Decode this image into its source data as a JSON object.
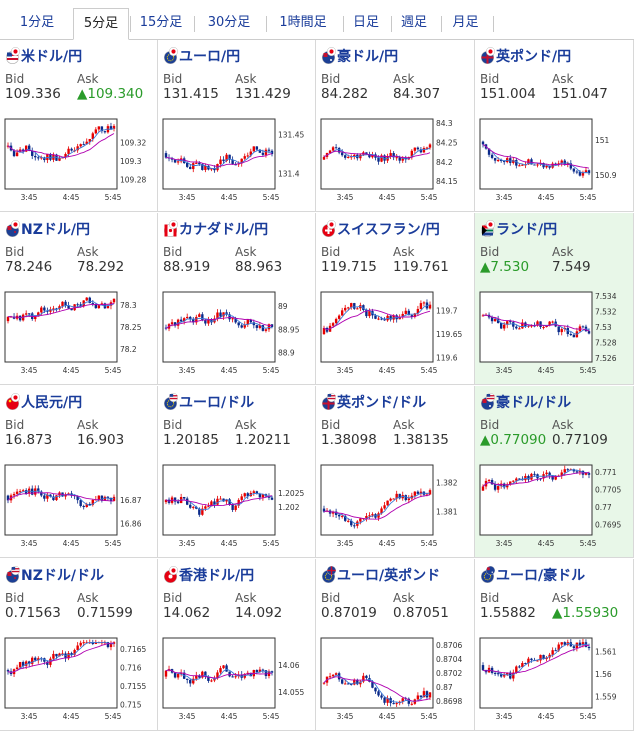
{
  "tabs": [
    {
      "label": "1分足"
    },
    {
      "label": "5分足"
    },
    {
      "label": "15分足"
    },
    {
      "label": "30分足"
    },
    {
      "label": "1時間足"
    },
    {
      "label": "日足"
    },
    {
      "label": "週足"
    },
    {
      "label": "月足"
    }
  ],
  "active_tab": "5分足",
  "bid_label": "Bid",
  "ask_label": "Ask",
  "x_ticks": [
    "3:45",
    "4:45",
    "5:45"
  ],
  "colors": {
    "up": "#e60000",
    "down": "#0a2a8a",
    "ma": "#b000b0",
    "signal": "#3a78d6",
    "highlight": "#e8f7e8",
    "link": "#1a3c9a",
    "green": "#2a9b2a"
  },
  "pairs": [
    {
      "name": "米ドル/円",
      "bid": "109.336",
      "ask": "▲109.340",
      "ask_up": true,
      "flags": [
        "us",
        "jp"
      ],
      "y_ticks": [
        "109.32",
        "109.3",
        "109.28"
      ],
      "ylim": [
        109.27,
        109.345
      ]
    },
    {
      "name": "ユーロ/円",
      "bid": "131.415",
      "ask": "131.429",
      "flags": [
        "eu",
        "jp"
      ],
      "y_ticks": [
        "131.45",
        "131.4"
      ],
      "ylim": [
        131.38,
        131.47
      ]
    },
    {
      "name": "豪ドル/円",
      "bid": "84.282",
      "ask": "84.307",
      "flags": [
        "au",
        "jp"
      ],
      "y_ticks": [
        "84.3",
        "84.25",
        "84.2",
        "84.15"
      ],
      "ylim": [
        84.13,
        84.31
      ]
    },
    {
      "name": "英ポンド/円",
      "bid": "151.004",
      "ask": "151.047",
      "flags": [
        "gb",
        "jp"
      ],
      "y_ticks": [
        "151",
        "150.9"
      ],
      "ylim": [
        150.86,
        151.06
      ]
    },
    {
      "name": "NZドル/円",
      "bid": "78.246",
      "ask": "78.292",
      "flags": [
        "nz",
        "jp"
      ],
      "y_ticks": [
        "78.3",
        "78.25",
        "78.2"
      ],
      "ylim": [
        78.17,
        78.33
      ]
    },
    {
      "name": "カナダドル/円",
      "bid": "88.919",
      "ask": "88.963",
      "flags": [
        "ca",
        "jp"
      ],
      "y_ticks": [
        "89",
        "88.95",
        "88.9"
      ],
      "ylim": [
        88.88,
        89.03
      ]
    },
    {
      "name": "スイスフラン/円",
      "bid": "119.715",
      "ask": "119.761",
      "flags": [
        "ch",
        "jp"
      ],
      "y_ticks": [
        "119.7",
        "119.65",
        "119.6"
      ],
      "ylim": [
        119.59,
        119.74
      ]
    },
    {
      "name": "ランド/円",
      "bid": "▲7.530",
      "bid_up": true,
      "ask": "7.549",
      "flags": [
        "za",
        "jp"
      ],
      "highlight": true,
      "y_ticks": [
        "7.534",
        "7.532",
        "7.53",
        "7.528",
        "7.526"
      ],
      "ylim": [
        7.5255,
        7.5345
      ]
    },
    {
      "name": "人民元/円",
      "bid": "16.873",
      "ask": "16.903",
      "flags": [
        "cn",
        "jp"
      ],
      "y_ticks": [
        "16.87",
        "16.86"
      ],
      "ylim": [
        16.855,
        16.885
      ]
    },
    {
      "name": "ユーロ/ドル",
      "bid": "1.20185",
      "ask": "1.20211",
      "flags": [
        "eu",
        "us"
      ],
      "y_ticks": [
        "1.2025",
        "1.202"
      ],
      "ylim": [
        1.201,
        1.2035
      ]
    },
    {
      "name": "英ポンド/ドル",
      "bid": "1.38098",
      "ask": "1.38135",
      "flags": [
        "gb",
        "us"
      ],
      "y_ticks": [
        "1.382",
        "1.381"
      ],
      "ylim": [
        1.3802,
        1.3826
      ]
    },
    {
      "name": "豪ドル/ドル",
      "bid": "▲0.77090",
      "bid_up": true,
      "ask": "0.77109",
      "flags": [
        "au",
        "us"
      ],
      "highlight": true,
      "y_ticks": [
        "0.771",
        "0.7705",
        "0.77",
        "0.7695"
      ],
      "ylim": [
        0.7692,
        0.7712
      ]
    },
    {
      "name": "NZドル/ドル",
      "bid": "0.71563",
      "ask": "0.71599",
      "flags": [
        "nz",
        "us"
      ],
      "y_ticks": [
        "0.7165",
        "0.716",
        "0.7155",
        "0.715"
      ],
      "ylim": [
        0.7149,
        0.7168
      ]
    },
    {
      "name": "香港ドル/円",
      "bid": "14.062",
      "ask": "14.092",
      "flags": [
        "hk",
        "jp"
      ],
      "y_ticks": [
        "14.06",
        "14.055"
      ],
      "ylim": [
        14.052,
        14.065
      ]
    },
    {
      "name": "ユーロ/英ポンド",
      "bid": "0.87019",
      "ask": "0.87051",
      "flags": [
        "eu",
        "gb"
      ],
      "y_ticks": [
        "0.8706",
        "0.8704",
        "0.8702",
        "0.87",
        "0.8698"
      ],
      "ylim": [
        0.8697,
        0.8707
      ]
    },
    {
      "name": "ユーロ/豪ドル",
      "bid": "1.55882",
      "ask": "▲1.55930",
      "ask_up": true,
      "flags": [
        "eu",
        "au"
      ],
      "y_ticks": [
        "1.561",
        "1.56",
        "1.559"
      ],
      "ylim": [
        1.5585,
        1.5616
      ]
    }
  ]
}
